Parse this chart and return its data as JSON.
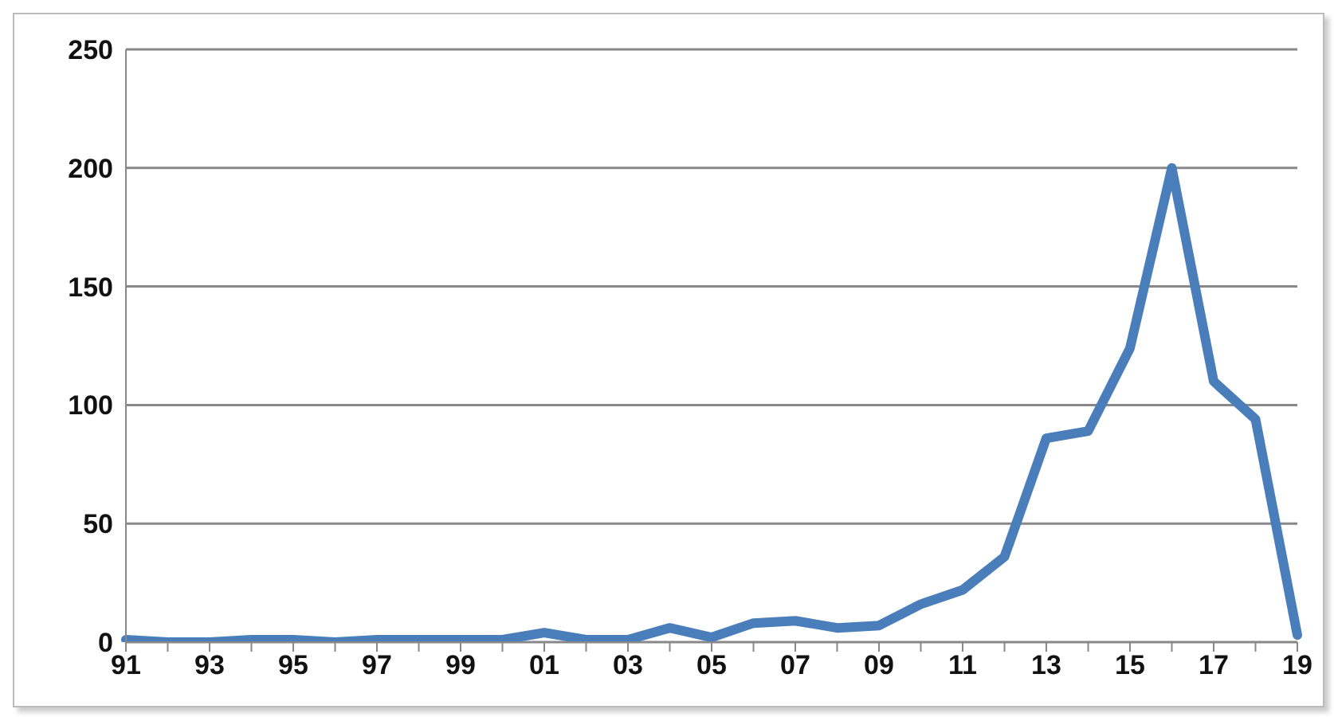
{
  "chart_data": {
    "type": "line",
    "categories": [
      "91",
      null,
      "93",
      null,
      "95",
      null,
      "97",
      null,
      "99",
      null,
      "01",
      null,
      "03",
      null,
      "05",
      null,
      "07",
      null,
      "09",
      null,
      "11",
      null,
      "13",
      null,
      "15",
      null,
      "17",
      null,
      "19"
    ],
    "series": [
      {
        "color": "#4a7ebb",
        "values": [
          1,
          0,
          0,
          1,
          1,
          0,
          1,
          1,
          1,
          1,
          4,
          1,
          1,
          6,
          2,
          8,
          9,
          6,
          7,
          16,
          22,
          36,
          86,
          89,
          124,
          200,
          110,
          94,
          3
        ]
      }
    ],
    "ylim": [
      0,
      250
    ],
    "yticks": [
      0,
      50,
      100,
      150,
      200,
      250
    ],
    "grid": "y",
    "legend": false,
    "marker": "none",
    "line_style": "solid"
  }
}
